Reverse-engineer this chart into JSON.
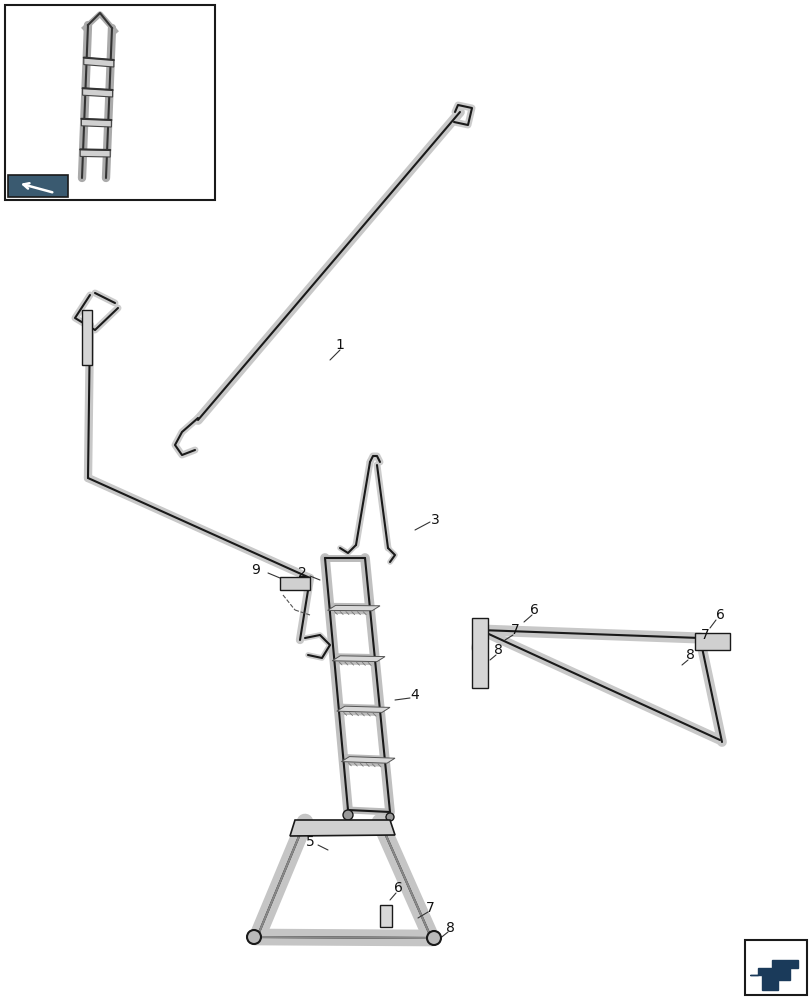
{
  "bg_color": "#ffffff",
  "line_color": "#1a1a1a",
  "lw": 1.8,
  "lw_thin": 0.9,
  "lw_thick": 3.0,
  "label_fs": 10,
  "label_color": "#111111"
}
